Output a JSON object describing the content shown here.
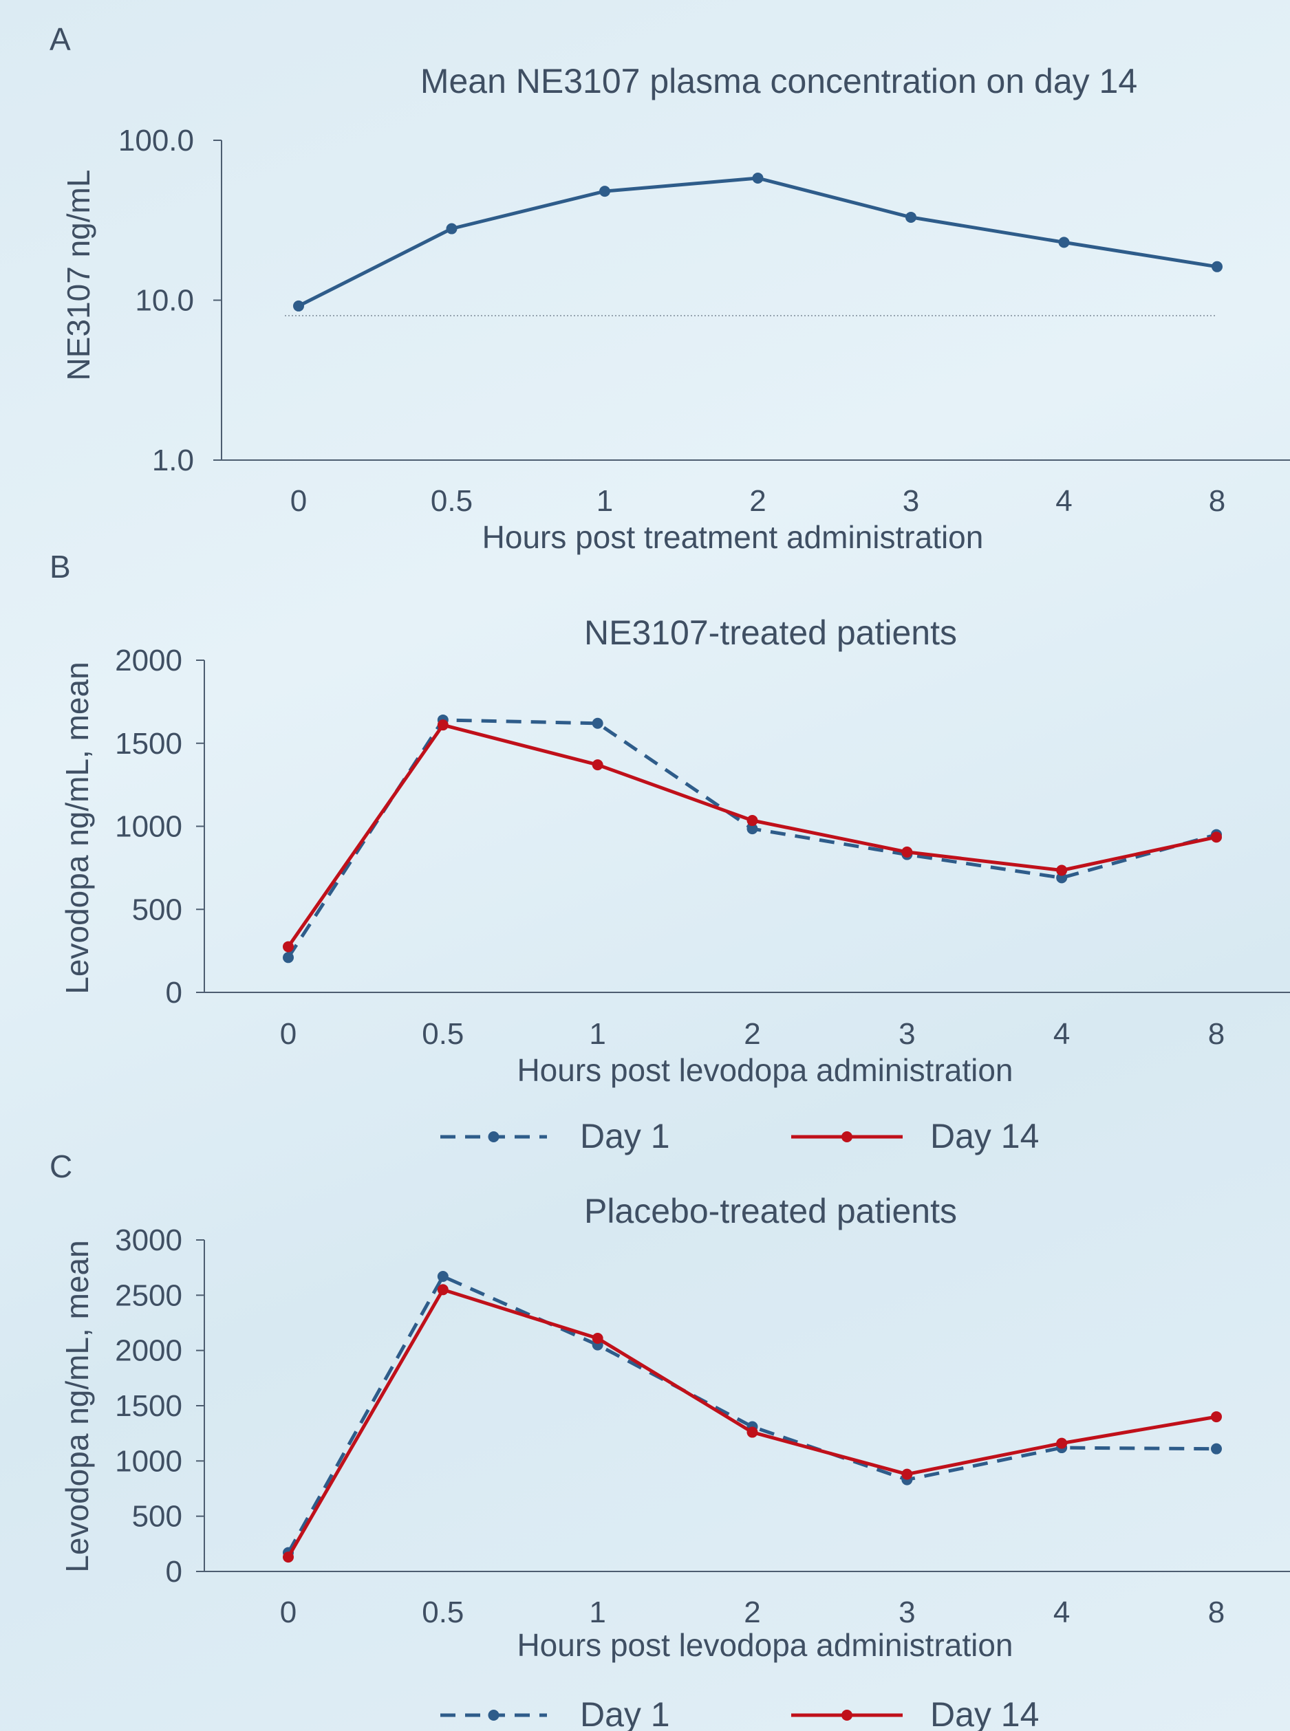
{
  "colors": {
    "day1": "#2e5c8a",
    "day14": "#c0101a",
    "text": "#3f4f63",
    "axis": "#4d5d70"
  },
  "chart_data": [
    {
      "panel": "A",
      "type": "line",
      "title": "Mean NE3107 plasma concentration on day 14",
      "xlabel": "Hours post treatment administration",
      "ylabel": "NE3107 ng/mL",
      "yscale": "log",
      "ylim": [
        1.0,
        100.0
      ],
      "yticks": [
        "1.0",
        "10.0",
        "100.0"
      ],
      "categories": [
        "0",
        "0.5",
        "1",
        "2",
        "3",
        "4",
        "8"
      ],
      "reference_line": 8.0,
      "series": [
        {
          "values": [
            9.2,
            28.0,
            48.0,
            58.0,
            33.0,
            23.0,
            16.2
          ],
          "color": "#2e5c8a",
          "dashed": false
        }
      ]
    },
    {
      "panel": "B",
      "type": "line",
      "title": "NE3107-treated patients",
      "xlabel": "Hours post levodopa administration",
      "ylabel": "Levodopa ng/mL, mean",
      "ylim": [
        0,
        2000
      ],
      "yticks": [
        "0",
        "500",
        "1000",
        "1500",
        "2000"
      ],
      "categories": [
        "0",
        "0.5",
        "1",
        "2",
        "3",
        "4",
        "8"
      ],
      "series": [
        {
          "name": "Day 1",
          "values": [
            210,
            1640,
            1620,
            985,
            830,
            690,
            950
          ],
          "color": "#2e5c8a",
          "dashed": true
        },
        {
          "name": "Day 14",
          "values": [
            275,
            1610,
            1370,
            1035,
            845,
            735,
            935
          ],
          "color": "#c0101a",
          "dashed": false
        }
      ],
      "legend": [
        "Day 1",
        "Day 14"
      ]
    },
    {
      "panel": "C",
      "type": "line",
      "title": "Placebo-treated patients",
      "xlabel": "Hours post levodopa administration",
      "ylabel": "Levodopa ng/mL, mean",
      "ylim": [
        0,
        3000
      ],
      "yticks": [
        "0",
        "500",
        "1000",
        "1500",
        "2000",
        "2500",
        "3000"
      ],
      "categories": [
        "0",
        "0.5",
        "1",
        "2",
        "3",
        "4",
        "8"
      ],
      "series": [
        {
          "name": "Day 1",
          "values": [
            170,
            2670,
            2050,
            1310,
            830,
            1120,
            1110
          ],
          "color": "#2e5c8a",
          "dashed": true
        },
        {
          "name": "Day 14",
          "values": [
            130,
            2550,
            2110,
            1260,
            880,
            1160,
            1400
          ],
          "color": "#c0101a",
          "dashed": false
        }
      ],
      "legend": [
        "Day 1",
        "Day 14"
      ]
    }
  ]
}
